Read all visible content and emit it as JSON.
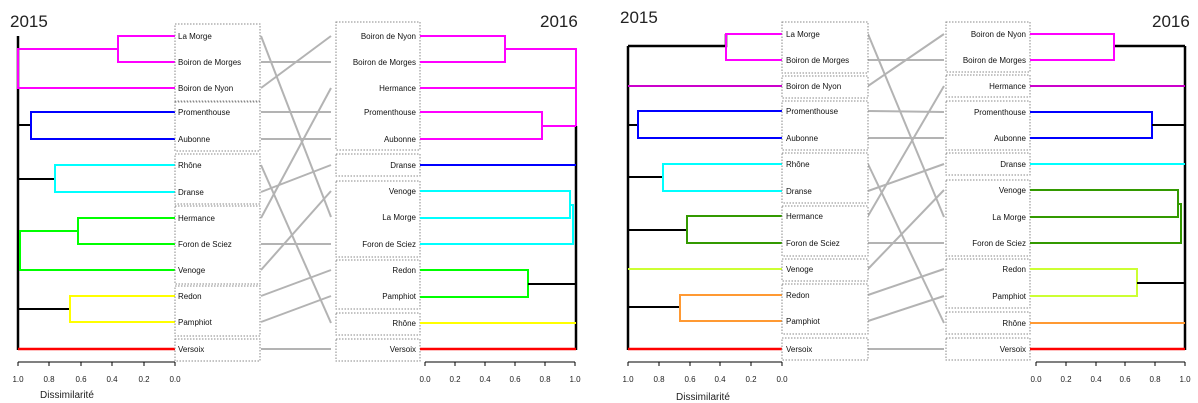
{
  "panels": [
    {
      "year_left": "2015",
      "year_right": "2016",
      "axis_title": "Dissimilarité",
      "left_ticks": [
        "1.0",
        "0.8",
        "0.6",
        "0.4",
        "0.2",
        "0.0"
      ],
      "right_ticks": [
        "0.0",
        "0.2",
        "0.4",
        "0.6",
        "0.8",
        "1.0"
      ],
      "left_leaves": [
        {
          "label": "La Morge",
          "color": "#ff00ff"
        },
        {
          "label": "Boiron de Morges",
          "color": "#ff00ff"
        },
        {
          "label": "Boiron de Nyon",
          "color": "#ff00ff"
        },
        {
          "label": "Promenthouse",
          "color": "#0000ff"
        },
        {
          "label": "Aubonne",
          "color": "#0000ff"
        },
        {
          "label": "Rhône",
          "color": "#00ffff"
        },
        {
          "label": "Dranse",
          "color": "#00ffff"
        },
        {
          "label": "Hermance",
          "color": "#00ff00"
        },
        {
          "label": "Foron de Sciez",
          "color": "#00ff00"
        },
        {
          "label": "Venoge",
          "color": "#00ff00"
        },
        {
          "label": "Redon",
          "color": "#ffff00"
        },
        {
          "label": "Pamphiot",
          "color": "#ffff00"
        },
        {
          "label": "Versoix",
          "color": "#ff0000"
        }
      ],
      "right_leaves": [
        {
          "label": "Boiron de Nyon",
          "color": "#ff00ff"
        },
        {
          "label": "Boiron de Morges",
          "color": "#ff00ff"
        },
        {
          "label": "Hermance",
          "color": "#ff00ff"
        },
        {
          "label": "Promenthouse",
          "color": "#ff00ff"
        },
        {
          "label": "Aubonne",
          "color": "#ff00ff"
        },
        {
          "label": "Dranse",
          "color": "#0000ff"
        },
        {
          "label": "Venoge",
          "color": "#00ffff"
        },
        {
          "label": "La Morge",
          "color": "#00ffff"
        },
        {
          "label": "Foron de Sciez",
          "color": "#00ffff"
        },
        {
          "label": "Redon",
          "color": "#00ff00"
        },
        {
          "label": "Pamphiot",
          "color": "#00ff00"
        },
        {
          "label": "Rhône",
          "color": "#ffff00"
        },
        {
          "label": "Versoix",
          "color": "#ff0000"
        }
      ]
    },
    {
      "year_left": "2015",
      "year_right": "2016",
      "axis_title": "Dissimilarité",
      "left_ticks": [
        "1.0",
        "0.8",
        "0.6",
        "0.4",
        "0.2",
        "0.0"
      ],
      "right_ticks": [
        "0.0",
        "0.2",
        "0.4",
        "0.6",
        "0.8",
        "1.0"
      ],
      "left_leaves": [
        {
          "label": "La Morge",
          "color": "#ff00ff"
        },
        {
          "label": "Boiron de Morges",
          "color": "#ff00ff"
        },
        {
          "label": "Boiron de Nyon",
          "color": "#cc00cc"
        },
        {
          "label": "Promenthouse",
          "color": "#0000ff"
        },
        {
          "label": "Aubonne",
          "color": "#0000ff"
        },
        {
          "label": "Rhône",
          "color": "#00ffff"
        },
        {
          "label": "Dranse",
          "color": "#00ffff"
        },
        {
          "label": "Hermance",
          "color": "#339900"
        },
        {
          "label": "Foron de Sciez",
          "color": "#339900"
        },
        {
          "label": "Venoge",
          "color": "#ccff33"
        },
        {
          "label": "Redon",
          "color": "#ff9933"
        },
        {
          "label": "Pamphiot",
          "color": "#ff9933"
        },
        {
          "label": "Versoix",
          "color": "#ff0000"
        }
      ],
      "right_leaves": [
        {
          "label": "Boiron de Nyon",
          "color": "#ff00ff"
        },
        {
          "label": "Boiron de Morges",
          "color": "#ff00ff"
        },
        {
          "label": "Hermance",
          "color": "#cc00cc"
        },
        {
          "label": "Promenthouse",
          "color": "#0000ff"
        },
        {
          "label": "Aubonne",
          "color": "#0000ff"
        },
        {
          "label": "Dranse",
          "color": "#00ffff"
        },
        {
          "label": "Venoge",
          "color": "#339900"
        },
        {
          "label": "La Morge",
          "color": "#339900"
        },
        {
          "label": "Foron de Sciez",
          "color": "#339900"
        },
        {
          "label": "Redon",
          "color": "#ccff33"
        },
        {
          "label": "Pamphiot",
          "color": "#ccff33"
        },
        {
          "label": "Rhône",
          "color": "#ff9933"
        },
        {
          "label": "Versoix",
          "color": "#ff0000"
        }
      ]
    }
  ]
}
